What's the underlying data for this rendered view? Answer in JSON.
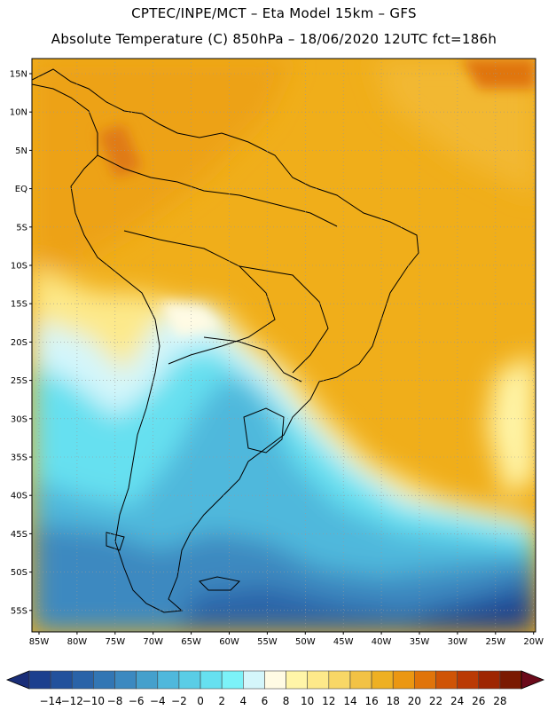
{
  "title_line1": "CPTEC/INPE/MCT –  Eta Model 15km – GFS",
  "title_line2": "Absolute Temperature (C) 850hPa – 18/06/2020 12UTC fct=186h",
  "lat_labels": [
    "15N",
    "10N",
    "5N",
    "EQ",
    "5S",
    "10S",
    "15S",
    "20S",
    "25S",
    "30S",
    "35S",
    "40S",
    "45S",
    "50S",
    "55S"
  ],
  "lon_labels": [
    "85W",
    "80W",
    "75W",
    "70W",
    "65W",
    "60W",
    "55W",
    "50W",
    "45W",
    "40W",
    "35W",
    "30W",
    "25W",
    "20W"
  ],
  "colorbar": {
    "labels": [
      "-14",
      "-12",
      "-10",
      "-8",
      "-6",
      "-4",
      "-2",
      "0",
      "2",
      "4",
      "6",
      "8",
      "10",
      "12",
      "14",
      "16",
      "18",
      "20",
      "22",
      "24",
      "26",
      "28"
    ],
    "colors": [
      "#1c3f8e",
      "#22519c",
      "#2a63a8",
      "#3276b4",
      "#3c89c0",
      "#45a0cc",
      "#4fb8dc",
      "#5acde6",
      "#66e0f0",
      "#7cf2f8",
      "#d4f6fb",
      "#fffbe4",
      "#fff5a8",
      "#fde98a",
      "#f8d766",
      "#f2c245",
      "#eeb023",
      "#eb9712",
      "#e0740a",
      "#cf5406",
      "#ba3a04",
      "#9e2602",
      "#7a1a01"
    ],
    "arrow_low": "#1a2e78",
    "arrow_high": "#6b0a1a"
  },
  "palette": {
    "warm": "#eeaa1a",
    "cool": "#5acde6",
    "deep": "#2a63a8"
  }
}
